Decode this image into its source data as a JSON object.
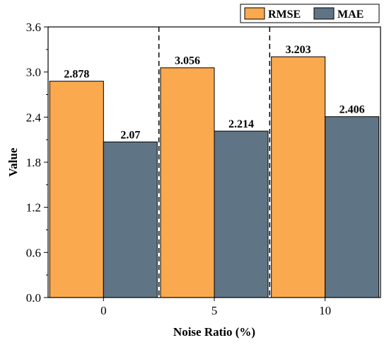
{
  "chart_data": {
    "type": "bar",
    "categories": [
      "0",
      "5",
      "10"
    ],
    "series": [
      {
        "name": "RMSE",
        "values": [
          2.878,
          3.056,
          3.203
        ],
        "labels": [
          "2.878",
          "3.056",
          "3.203"
        ],
        "color": "#FBA94E"
      },
      {
        "name": "MAE",
        "values": [
          2.07,
          2.214,
          2.406
        ],
        "labels": [
          "2.07",
          "2.214",
          "2.406"
        ],
        "color": "#5F7585"
      }
    ],
    "xlabel": "Noise Ratio (%)",
    "ylabel": "Value",
    "ylim": [
      0,
      3.6
    ],
    "yticks": [
      "0.0",
      "0.6",
      "1.2",
      "1.8",
      "2.4",
      "3.0",
      "3.6"
    ],
    "grid": false,
    "legend_position": "top-right",
    "group_separators": "dashed"
  }
}
